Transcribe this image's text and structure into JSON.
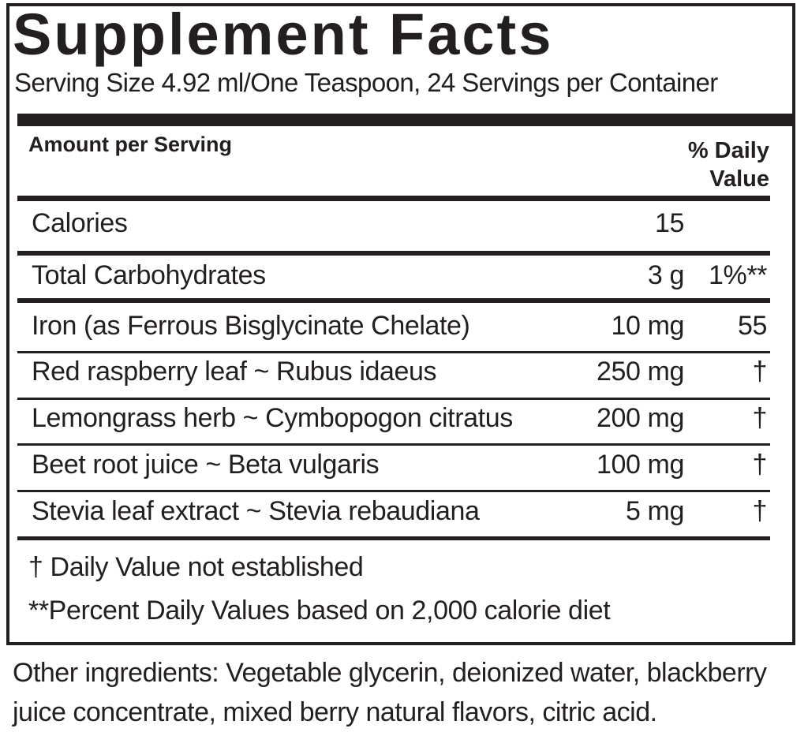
{
  "title": "Supplement Facts",
  "serving": "Serving Size 4.92 ml/One Teaspoon, 24 Servings per Container",
  "header": {
    "amount": "Amount per Serving",
    "daily_value": "% Daily Value"
  },
  "rows": [
    {
      "name": "Calories",
      "amount": "15"
    },
    {
      "name": "Total Carbohydrates",
      "amount": "3 g",
      "dv": "1%**"
    },
    {
      "name": "Iron (as Ferrous Bisglycinate Chelate)",
      "amount": "10 mg",
      "dv": "55"
    },
    {
      "name": "Red raspberry leaf ~ Rubus idaeus",
      "amount": "250 mg",
      "dv": "†"
    },
    {
      "name": "Lemongrass herb ~ Cymbopogon citratus",
      "amount": "200 mg",
      "dv": "†"
    },
    {
      "name": "Beet root juice ~ Beta vulgaris",
      "amount": "100 mg",
      "dv": "†"
    },
    {
      "name": "Stevia leaf extract ~ Stevia rebaudiana",
      "amount": "5 mg",
      "dv": "†"
    }
  ],
  "footnotes": [
    "† Daily Value not established",
    "**Percent Daily Values based on 2,000 calorie diet"
  ],
  "other_ingredients": "Other ingredients: Vegetable glycerin, deionized water, blackberry juice concentrate, mixed berry natural flavors, citric acid."
}
